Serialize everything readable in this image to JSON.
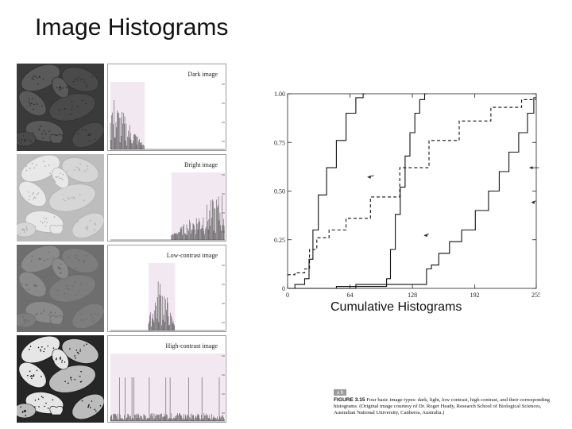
{
  "slide": {
    "title": "Image Histograms"
  },
  "panels": [
    {
      "label": "Dark image",
      "photo_tone": "dark",
      "hist_range": [
        0,
        45
      ]
    },
    {
      "label": "Bright image",
      "photo_tone": "bright",
      "hist_range": [
        80,
        150
      ]
    },
    {
      "label": "Low-contrast image",
      "photo_tone": "low",
      "hist_range": [
        50,
        85
      ]
    },
    {
      "label": "High-contrast image",
      "photo_tone": "high",
      "hist_range": [
        0,
        150
      ]
    }
  ],
  "cumulative": {
    "caption": "Cumulative Histograms",
    "x_ticks": [
      "0",
      "64",
      "128",
      "192",
      "255"
    ],
    "y_ticks": [
      "0",
      "0.25",
      "0.50",
      "0.75",
      "1.00"
    ]
  },
  "chart_data": {
    "type": "line",
    "title": "Cumulative Histograms",
    "xlabel": "",
    "ylabel": "",
    "xlim": [
      0,
      255
    ],
    "ylim": [
      0,
      1
    ],
    "series": [
      {
        "x": [
          0,
          15,
          20,
          24,
          28,
          35,
          45,
          55,
          65,
          75,
          80
        ],
        "values": [
          0,
          0.02,
          0.05,
          0.15,
          0.3,
          0.48,
          0.62,
          0.76,
          0.9,
          0.98,
          1.0
        ],
        "style": "solid"
      },
      {
        "x": [
          0,
          100,
          103,
          108,
          113,
          118,
          123,
          128,
          133,
          138,
          143
        ],
        "values": [
          0,
          0.01,
          0.05,
          0.2,
          0.38,
          0.52,
          0.68,
          0.8,
          0.9,
          0.97,
          1.0
        ],
        "style": "solid"
      },
      {
        "x": [
          0,
          15,
          20,
          25,
          35,
          50,
          70,
          100,
          130,
          160,
          192,
          225,
          255
        ],
        "values": [
          0.07,
          0.08,
          0.1,
          0.2,
          0.26,
          0.3,
          0.36,
          0.47,
          0.62,
          0.76,
          0.86,
          0.93,
          0.97
        ],
        "style": "dashed"
      },
      {
        "x": [
          0,
          140,
          145,
          150,
          160,
          172,
          185,
          200,
          212,
          222,
          232,
          242,
          250,
          255
        ],
        "values": [
          0,
          0.02,
          0.1,
          0.12,
          0.18,
          0.24,
          0.3,
          0.4,
          0.5,
          0.6,
          0.7,
          0.8,
          0.9,
          0.98
        ],
        "style": "solid"
      }
    ]
  },
  "figure_caption": {
    "id": "a b",
    "label": "FIGURE 3.15",
    "text": "Four basic image types: dark, light, low contrast, high contrast, and their corresponding histograms. (Original image courtesy of Dr. Roger Heady, Research School of Biological Sciences, Australian National University, Canberra, Australia.)"
  },
  "colors": {
    "plot_line": "#111111",
    "panel_border": "#9a9a9a",
    "hist_band": "#f2e8f2"
  }
}
